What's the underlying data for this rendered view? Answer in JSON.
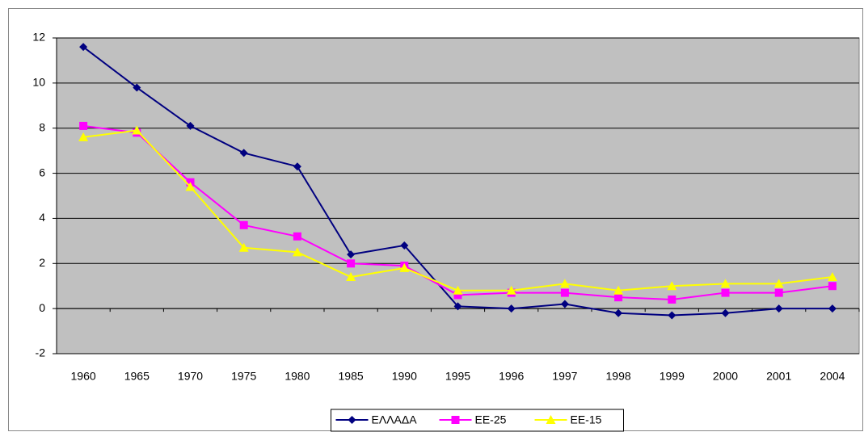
{
  "chart_data": {
    "type": "line",
    "categories": [
      "1960",
      "1965",
      "1970",
      "1975",
      "1980",
      "1985",
      "1990",
      "1995",
      "1996",
      "1997",
      "1998",
      "1999",
      "2000",
      "2001",
      "2004"
    ],
    "series": [
      {
        "name": "ΕΛΛΑΔΑ",
        "color": "#000080",
        "marker": "diamond",
        "values": [
          11.6,
          9.8,
          8.1,
          6.9,
          6.3,
          2.4,
          2.8,
          0.1,
          0.0,
          0.2,
          -0.2,
          -0.3,
          -0.2,
          0.0,
          0.0
        ]
      },
      {
        "name": "EE-25",
        "color": "#ff00ff",
        "marker": "square",
        "values": [
          8.1,
          7.8,
          5.6,
          3.7,
          3.2,
          2.0,
          1.9,
          0.6,
          0.7,
          0.7,
          0.5,
          0.4,
          0.7,
          0.7,
          1.0
        ]
      },
      {
        "name": "EE-15",
        "color": "#ffff00",
        "marker": "triangle",
        "values": [
          7.6,
          7.9,
          5.4,
          2.7,
          2.5,
          1.4,
          1.8,
          0.8,
          0.8,
          1.1,
          0.8,
          1.0,
          1.1,
          1.1,
          1.4
        ]
      }
    ],
    "ylim": [
      -2,
      12
    ],
    "yticks": [
      -2,
      0,
      2,
      4,
      6,
      8,
      10,
      12
    ],
    "grid": true,
    "plot_background": "#c0c0c0",
    "legend": "bottom"
  }
}
